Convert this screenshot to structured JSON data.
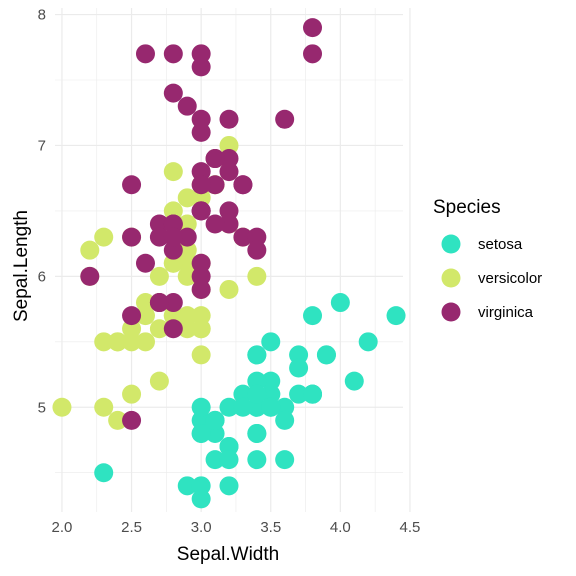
{
  "chart_data": {
    "type": "scatter",
    "title": "",
    "xlabel": "Sepal.Width",
    "ylabel": "Sepal.Length",
    "xlim": [
      1.95,
      4.45
    ],
    "ylim": [
      4.2,
      8.05
    ],
    "x_ticks": [
      2.0,
      2.5,
      3.0,
      3.5,
      4.0,
      4.5
    ],
    "x_tick_labels": [
      "2.0",
      "2.5",
      "3.0",
      "3.5",
      "4.0",
      "4.5"
    ],
    "y_ticks": [
      5,
      6,
      7,
      8
    ],
    "y_tick_labels": [
      "5",
      "6",
      "7",
      "8"
    ],
    "grid": true,
    "legend": {
      "title": "Species",
      "placement": "right"
    },
    "series": [
      {
        "name": "setosa",
        "color": "#2fe3c1",
        "points": [
          [
            3.5,
            5.1
          ],
          [
            3.0,
            4.9
          ],
          [
            3.2,
            4.7
          ],
          [
            3.1,
            4.6
          ],
          [
            3.6,
            5.0
          ],
          [
            3.9,
            5.4
          ],
          [
            3.4,
            4.6
          ],
          [
            3.4,
            5.0
          ],
          [
            2.9,
            4.4
          ],
          [
            3.1,
            4.9
          ],
          [
            3.7,
            5.4
          ],
          [
            3.4,
            4.8
          ],
          [
            3.0,
            4.8
          ],
          [
            3.0,
            4.3
          ],
          [
            4.0,
            5.8
          ],
          [
            4.4,
            5.7
          ],
          [
            3.9,
            5.4
          ],
          [
            3.5,
            5.1
          ],
          [
            3.8,
            5.7
          ],
          [
            3.8,
            5.1
          ],
          [
            3.4,
            5.4
          ],
          [
            3.7,
            5.1
          ],
          [
            3.6,
            4.6
          ],
          [
            3.3,
            5.1
          ],
          [
            3.4,
            4.8
          ],
          [
            3.0,
            5.0
          ],
          [
            3.4,
            5.0
          ],
          [
            3.5,
            5.2
          ],
          [
            3.4,
            5.2
          ],
          [
            3.2,
            4.7
          ],
          [
            3.1,
            4.8
          ],
          [
            3.4,
            5.4
          ],
          [
            4.1,
            5.2
          ],
          [
            4.2,
            5.5
          ],
          [
            3.1,
            4.9
          ],
          [
            3.2,
            5.0
          ],
          [
            3.5,
            5.5
          ],
          [
            3.6,
            4.9
          ],
          [
            3.0,
            4.4
          ],
          [
            3.4,
            5.1
          ],
          [
            3.5,
            5.0
          ],
          [
            2.3,
            4.5
          ],
          [
            3.2,
            4.4
          ],
          [
            3.5,
            5.0
          ],
          [
            3.8,
            5.1
          ],
          [
            3.0,
            4.8
          ],
          [
            3.8,
            5.1
          ],
          [
            3.2,
            4.6
          ],
          [
            3.7,
            5.3
          ],
          [
            3.3,
            5.0
          ]
        ]
      },
      {
        "name": "versicolor",
        "color": "#d2e86a",
        "points": [
          [
            3.2,
            7.0
          ],
          [
            3.2,
            6.4
          ],
          [
            3.1,
            6.9
          ],
          [
            2.3,
            5.5
          ],
          [
            2.8,
            6.5
          ],
          [
            2.8,
            5.7
          ],
          [
            3.3,
            6.3
          ],
          [
            2.4,
            4.9
          ],
          [
            2.9,
            6.6
          ],
          [
            2.7,
            5.2
          ],
          [
            2.0,
            5.0
          ],
          [
            3.0,
            5.9
          ],
          [
            2.2,
            6.0
          ],
          [
            2.9,
            6.1
          ],
          [
            2.9,
            5.6
          ],
          [
            3.1,
            6.7
          ],
          [
            3.0,
            5.6
          ],
          [
            2.7,
            5.8
          ],
          [
            2.2,
            6.2
          ],
          [
            2.5,
            5.6
          ],
          [
            3.2,
            5.9
          ],
          [
            2.8,
            6.1
          ],
          [
            2.5,
            6.3
          ],
          [
            2.8,
            6.1
          ],
          [
            2.9,
            6.4
          ],
          [
            3.0,
            6.6
          ],
          [
            2.8,
            6.8
          ],
          [
            3.0,
            6.7
          ],
          [
            2.9,
            6.0
          ],
          [
            2.6,
            5.7
          ],
          [
            2.4,
            5.5
          ],
          [
            2.4,
            5.5
          ],
          [
            2.7,
            5.8
          ],
          [
            2.7,
            6.0
          ],
          [
            3.0,
            5.4
          ],
          [
            3.4,
            6.0
          ],
          [
            3.1,
            6.7
          ],
          [
            2.3,
            6.3
          ],
          [
            3.0,
            5.6
          ],
          [
            2.5,
            5.5
          ],
          [
            2.6,
            5.5
          ],
          [
            3.0,
            6.1
          ],
          [
            2.6,
            5.8
          ],
          [
            2.3,
            5.0
          ],
          [
            2.7,
            5.6
          ],
          [
            3.0,
            5.7
          ],
          [
            2.9,
            5.7
          ],
          [
            2.9,
            6.2
          ],
          [
            2.5,
            5.1
          ],
          [
            2.8,
            5.7
          ]
        ]
      },
      {
        "name": "virginica",
        "color": "#97286f",
        "points": [
          [
            3.3,
            6.3
          ],
          [
            2.7,
            5.8
          ],
          [
            3.0,
            7.1
          ],
          [
            2.9,
            6.3
          ],
          [
            3.0,
            6.5
          ],
          [
            3.0,
            7.6
          ],
          [
            2.5,
            4.9
          ],
          [
            2.9,
            7.3
          ],
          [
            2.5,
            6.7
          ],
          [
            3.6,
            7.2
          ],
          [
            3.2,
            6.5
          ],
          [
            2.7,
            6.4
          ],
          [
            3.0,
            6.8
          ],
          [
            2.5,
            5.7
          ],
          [
            2.8,
            5.8
          ],
          [
            3.2,
            6.4
          ],
          [
            3.0,
            6.5
          ],
          [
            3.8,
            7.7
          ],
          [
            2.6,
            7.7
          ],
          [
            2.2,
            6.0
          ],
          [
            3.2,
            6.9
          ],
          [
            2.8,
            5.6
          ],
          [
            2.8,
            7.7
          ],
          [
            2.7,
            6.3
          ],
          [
            3.3,
            6.7
          ],
          [
            3.2,
            7.2
          ],
          [
            2.8,
            6.2
          ],
          [
            3.0,
            6.1
          ],
          [
            2.8,
            6.4
          ],
          [
            3.0,
            7.2
          ],
          [
            2.8,
            7.4
          ],
          [
            3.8,
            7.9
          ],
          [
            2.8,
            6.4
          ],
          [
            2.8,
            6.3
          ],
          [
            2.6,
            6.1
          ],
          [
            3.0,
            7.7
          ],
          [
            3.4,
            6.3
          ],
          [
            3.1,
            6.4
          ],
          [
            3.0,
            6.0
          ],
          [
            3.1,
            6.9
          ],
          [
            3.1,
            6.7
          ],
          [
            3.1,
            6.9
          ],
          [
            2.7,
            5.8
          ],
          [
            3.2,
            6.8
          ],
          [
            3.3,
            6.7
          ],
          [
            3.0,
            6.7
          ],
          [
            2.5,
            6.3
          ],
          [
            3.0,
            6.5
          ],
          [
            3.4,
            6.2
          ],
          [
            3.0,
            5.9
          ]
        ]
      }
    ]
  }
}
